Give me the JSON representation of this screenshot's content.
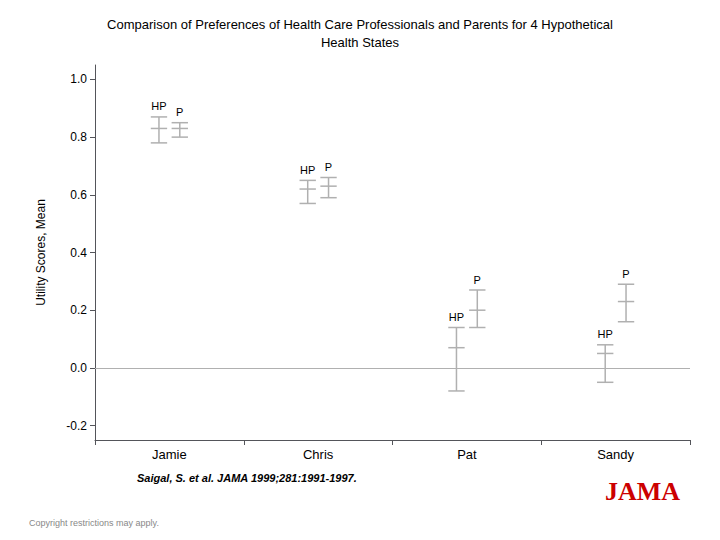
{
  "chart_data": {
    "type": "error_bar",
    "title": "Comparison of Preferences of Health Care Professionals and Parents for 4 Hypothetical\nHealth States",
    "ylabel": "Utility Scores, Mean",
    "categories": [
      "Jamie",
      "Chris",
      "Pat",
      "Sandy"
    ],
    "color": "#b0b0b0",
    "series": [
      {
        "name": "HP",
        "values": [
          0.83,
          0.62,
          0.07,
          0.05
        ],
        "ci_lower": [
          0.78,
          0.57,
          -0.08,
          -0.05
        ],
        "ci_upper": [
          0.87,
          0.65,
          0.14,
          0.08
        ]
      },
      {
        "name": "P",
        "values": [
          0.83,
          0.63,
          0.2,
          0.23
        ],
        "ci_lower": [
          0.8,
          0.59,
          0.14,
          0.16
        ],
        "ci_upper": [
          0.85,
          0.66,
          0.27,
          0.29
        ]
      }
    ],
    "ylim": [
      -0.25,
      1.05
    ],
    "yticks": [
      -0.2,
      {
        "value": 0,
        "label": "0.0"
      },
      0.2,
      0.4,
      0.6,
      0.8,
      {
        "value": 1,
        "label": "1.0"
      }
    ],
    "grid": false,
    "annotations": [
      {
        "text": "Saigal, S. et al. JAMA 1999;281:1991-1997."
      },
      {
        "text": "JAMA",
        "color": "#cc0000"
      },
      {
        "text": "Copyright restrictions may apply.",
        "color": "#888888"
      }
    ]
  }
}
